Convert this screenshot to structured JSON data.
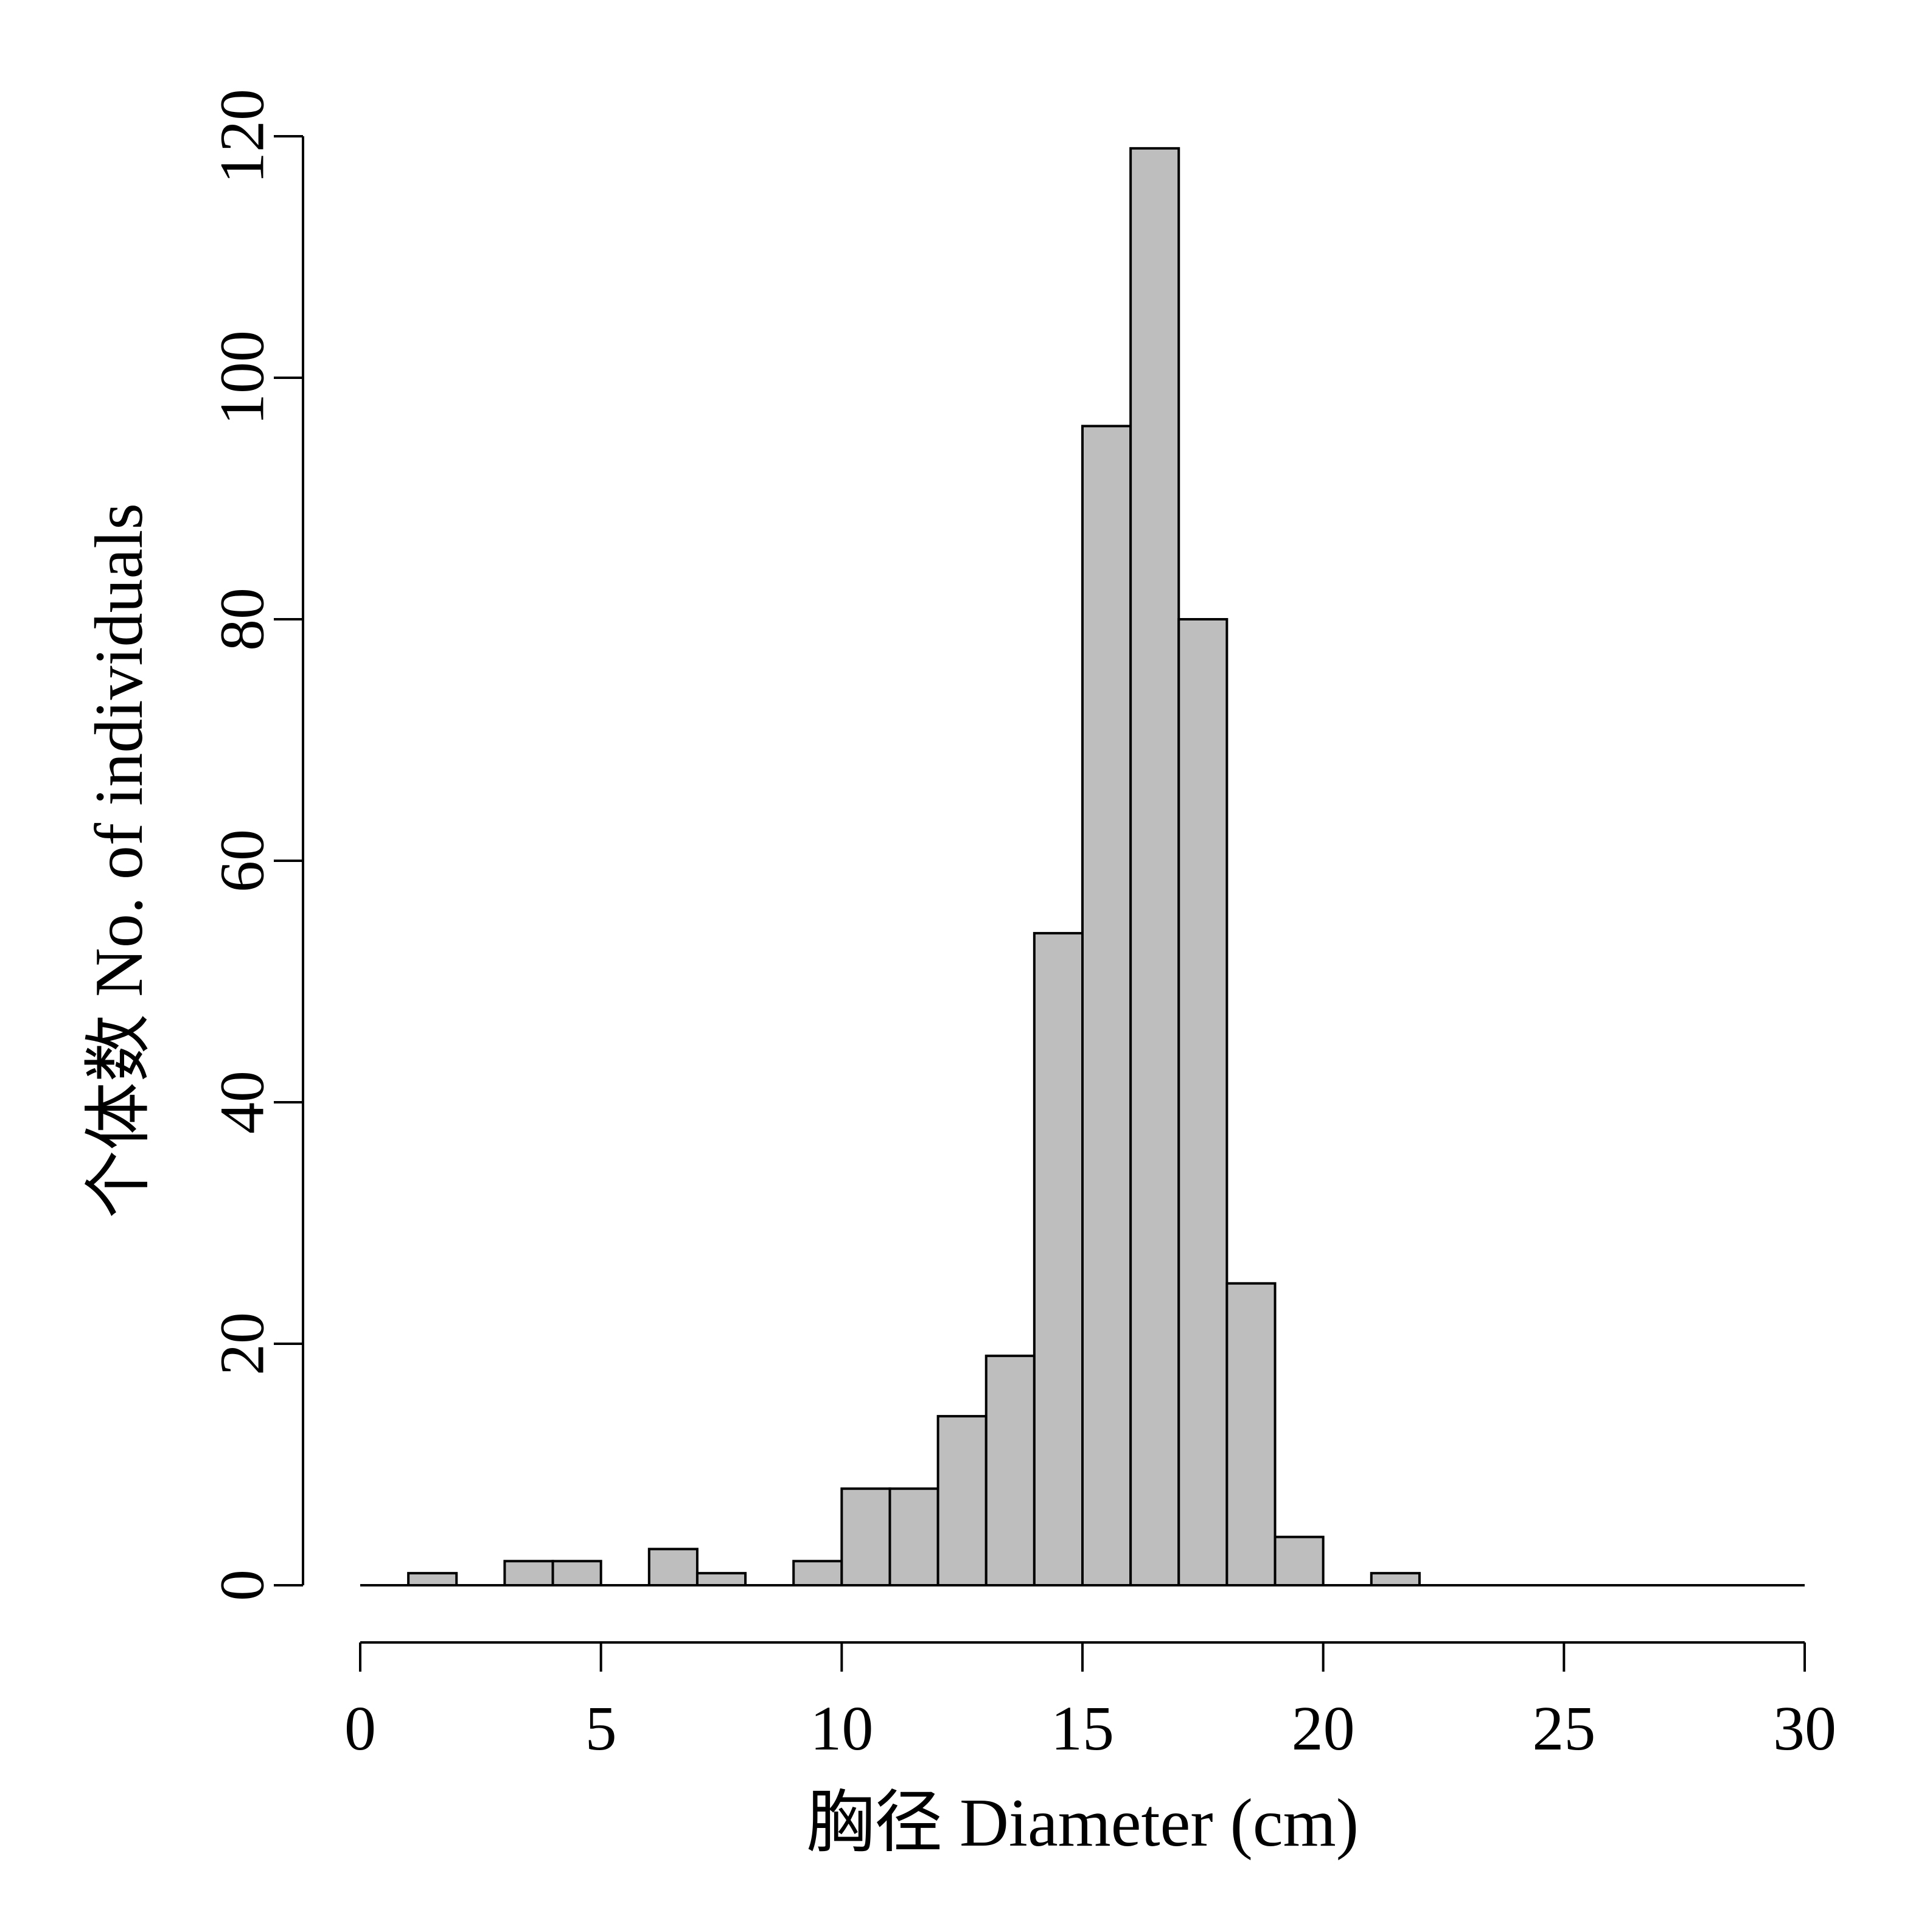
{
  "chart_data": {
    "type": "bar",
    "subtype": "histogram",
    "xlabel": "胸径 Diameter (cm)",
    "ylabel": "个体数 No. of individuals",
    "xlim": [
      0,
      30
    ],
    "ylim": [
      0,
      120
    ],
    "xticks": [
      0,
      5,
      10,
      15,
      20,
      25,
      30
    ],
    "yticks": [
      0,
      20,
      40,
      60,
      80,
      100,
      120
    ],
    "bin_width": 1,
    "bins": [
      {
        "start": 0,
        "end": 1,
        "count": 0
      },
      {
        "start": 1,
        "end": 2,
        "count": 1
      },
      {
        "start": 2,
        "end": 3,
        "count": 0
      },
      {
        "start": 3,
        "end": 4,
        "count": 2
      },
      {
        "start": 4,
        "end": 5,
        "count": 2
      },
      {
        "start": 5,
        "end": 6,
        "count": 0
      },
      {
        "start": 6,
        "end": 7,
        "count": 3
      },
      {
        "start": 7,
        "end": 8,
        "count": 1
      },
      {
        "start": 8,
        "end": 9,
        "count": 0
      },
      {
        "start": 9,
        "end": 10,
        "count": 2
      },
      {
        "start": 10,
        "end": 11,
        "count": 8
      },
      {
        "start": 11,
        "end": 12,
        "count": 8
      },
      {
        "start": 12,
        "end": 13,
        "count": 14
      },
      {
        "start": 13,
        "end": 14,
        "count": 19
      },
      {
        "start": 14,
        "end": 15,
        "count": 54
      },
      {
        "start": 15,
        "end": 16,
        "count": 96
      },
      {
        "start": 16,
        "end": 17,
        "count": 119
      },
      {
        "start": 17,
        "end": 18,
        "count": 80
      },
      {
        "start": 18,
        "end": 19,
        "count": 25
      },
      {
        "start": 19,
        "end": 20,
        "count": 4
      },
      {
        "start": 20,
        "end": 21,
        "count": 0
      },
      {
        "start": 21,
        "end": 22,
        "count": 1
      },
      {
        "start": 22,
        "end": 23,
        "count": 0
      },
      {
        "start": 23,
        "end": 24,
        "count": 0
      },
      {
        "start": 24,
        "end": 25,
        "count": 0
      },
      {
        "start": 25,
        "end": 26,
        "count": 0
      },
      {
        "start": 26,
        "end": 27,
        "count": 0
      },
      {
        "start": 27,
        "end": 28,
        "count": 0
      },
      {
        "start": 28,
        "end": 29,
        "count": 0
      },
      {
        "start": 29,
        "end": 30,
        "count": 0
      }
    ],
    "bar_color": "#bebebe",
    "edge_color": "#000000",
    "grid": false,
    "legend": "none"
  }
}
